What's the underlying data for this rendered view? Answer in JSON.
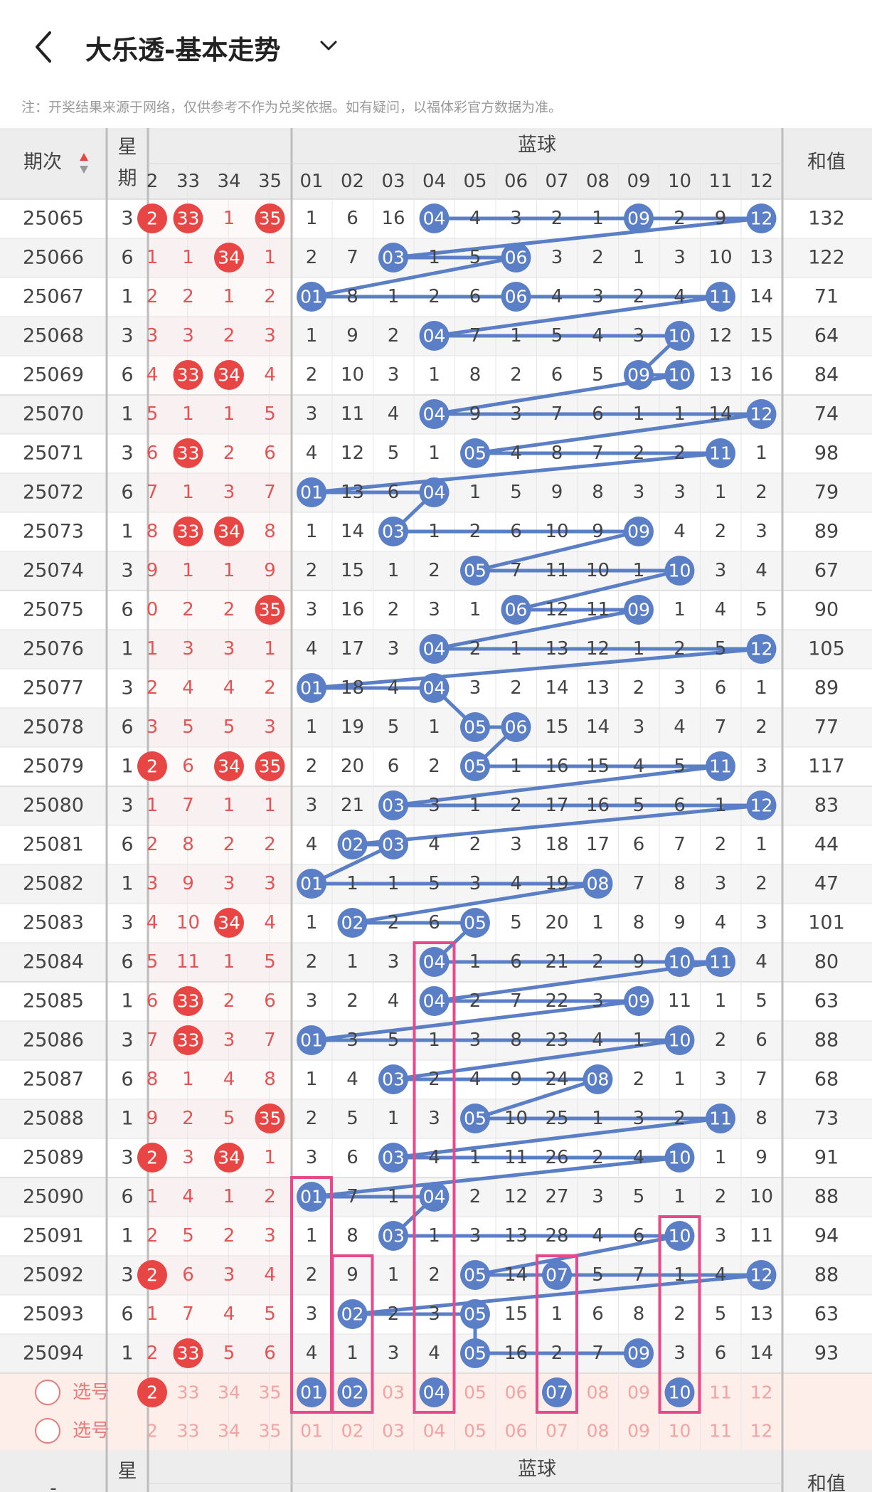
{
  "header": {
    "title": "大乐透-基本走势",
    "back_icon": "chevron-left-icon",
    "dropdown_icon": "chevron-down-icon"
  },
  "notice": "注：开奖结果来源于网络，仅供参考不作为兑奖依据。如有疑问，以福体彩官方数据为准。",
  "table": {
    "col_issue": "期次",
    "col_week": "星期",
    "col_blue": "蓝球",
    "col_sum": "和值",
    "red_cols": [
      "2",
      "33",
      "34",
      "35"
    ],
    "blue_cols": [
      "01",
      "02",
      "03",
      "04",
      "05",
      "06",
      "07",
      "08",
      "09",
      "10",
      "11",
      "12"
    ],
    "rows": [
      {
        "issue": "25065",
        "week": "3",
        "red": [
          "2",
          "33",
          "1",
          "35"
        ],
        "blue": [
          "1",
          "6",
          "16",
          "04",
          "4",
          "3",
          "2",
          "1",
          "09",
          "2",
          "9",
          "12"
        ],
        "sum": "132"
      },
      {
        "issue": "25066",
        "week": "6",
        "red": [
          "1",
          "1",
          "34",
          "1"
        ],
        "blue": [
          "2",
          "7",
          "03",
          "1",
          "5",
          "06",
          "3",
          "2",
          "1",
          "3",
          "10",
          "13"
        ],
        "sum": "122"
      },
      {
        "issue": "25067",
        "week": "1",
        "red": [
          "2",
          "2",
          "1",
          "2"
        ],
        "blue": [
          "01",
          "8",
          "1",
          "2",
          "6",
          "06",
          "4",
          "3",
          "2",
          "4",
          "11",
          "14"
        ],
        "sum": "71"
      },
      {
        "issue": "25068",
        "week": "3",
        "red": [
          "3",
          "3",
          "2",
          "3"
        ],
        "blue": [
          "1",
          "9",
          "2",
          "04",
          "7",
          "1",
          "5",
          "4",
          "3",
          "10",
          "12",
          "15"
        ],
        "sum": "64"
      },
      {
        "issue": "25069",
        "week": "6",
        "red": [
          "4",
          "33",
          "34",
          "4"
        ],
        "blue": [
          "2",
          "10",
          "3",
          "1",
          "8",
          "2",
          "6",
          "5",
          "09",
          "10",
          "13",
          "16"
        ],
        "sum": "84"
      },
      {
        "issue": "25070",
        "week": "1",
        "red": [
          "5",
          "1",
          "1",
          "5"
        ],
        "blue": [
          "3",
          "11",
          "4",
          "04",
          "9",
          "3",
          "7",
          "6",
          "1",
          "1",
          "14",
          "12"
        ],
        "sum": "74"
      },
      {
        "issue": "25071",
        "week": "3",
        "red": [
          "6",
          "33",
          "2",
          "6"
        ],
        "blue": [
          "4",
          "12",
          "5",
          "1",
          "05",
          "4",
          "8",
          "7",
          "2",
          "2",
          "11",
          "1"
        ],
        "sum": "98"
      },
      {
        "issue": "25072",
        "week": "6",
        "red": [
          "7",
          "1",
          "3",
          "7"
        ],
        "blue": [
          "01",
          "13",
          "6",
          "04",
          "1",
          "5",
          "9",
          "8",
          "3",
          "3",
          "1",
          "2"
        ],
        "sum": "79"
      },
      {
        "issue": "25073",
        "week": "1",
        "red": [
          "8",
          "33",
          "34",
          "8"
        ],
        "blue": [
          "1",
          "14",
          "03",
          "1",
          "2",
          "6",
          "10",
          "9",
          "09",
          "4",
          "2",
          "3"
        ],
        "sum": "89"
      },
      {
        "issue": "25074",
        "week": "3",
        "red": [
          "9",
          "1",
          "1",
          "9"
        ],
        "blue": [
          "2",
          "15",
          "1",
          "2",
          "05",
          "7",
          "11",
          "10",
          "1",
          "10",
          "3",
          "4"
        ],
        "sum": "67"
      },
      {
        "issue": "25075",
        "week": "6",
        "red": [
          "0",
          "2",
          "2",
          "35"
        ],
        "blue": [
          "3",
          "16",
          "2",
          "3",
          "1",
          "06",
          "12",
          "11",
          "09",
          "1",
          "4",
          "5"
        ],
        "sum": "90"
      },
      {
        "issue": "25076",
        "week": "1",
        "red": [
          "1",
          "3",
          "3",
          "1"
        ],
        "blue": [
          "4",
          "17",
          "3",
          "04",
          "2",
          "1",
          "13",
          "12",
          "1",
          "2",
          "5",
          "12"
        ],
        "sum": "105"
      },
      {
        "issue": "25077",
        "week": "3",
        "red": [
          "2",
          "4",
          "4",
          "2"
        ],
        "blue": [
          "01",
          "18",
          "4",
          "04",
          "3",
          "2",
          "14",
          "13",
          "2",
          "3",
          "6",
          "1"
        ],
        "sum": "89"
      },
      {
        "issue": "25078",
        "week": "6",
        "red": [
          "3",
          "5",
          "5",
          "3"
        ],
        "blue": [
          "1",
          "19",
          "5",
          "1",
          "05",
          "06",
          "15",
          "14",
          "3",
          "4",
          "7",
          "2"
        ],
        "sum": "77"
      },
      {
        "issue": "25079",
        "week": "1",
        "red": [
          "2",
          "6",
          "34",
          "35"
        ],
        "blue": [
          "2",
          "20",
          "6",
          "2",
          "05",
          "1",
          "16",
          "15",
          "4",
          "5",
          "11",
          "3"
        ],
        "sum": "117"
      },
      {
        "issue": "25080",
        "week": "3",
        "red": [
          "1",
          "7",
          "1",
          "1"
        ],
        "blue": [
          "3",
          "21",
          "03",
          "3",
          "1",
          "2",
          "17",
          "16",
          "5",
          "6",
          "1",
          "12"
        ],
        "sum": "83"
      },
      {
        "issue": "25081",
        "week": "6",
        "red": [
          "2",
          "8",
          "2",
          "2"
        ],
        "blue": [
          "4",
          "02",
          "03",
          "4",
          "2",
          "3",
          "18",
          "17",
          "6",
          "7",
          "2",
          "1"
        ],
        "sum": "44"
      },
      {
        "issue": "25082",
        "week": "1",
        "red": [
          "3",
          "9",
          "3",
          "3"
        ],
        "blue": [
          "01",
          "1",
          "1",
          "5",
          "3",
          "4",
          "19",
          "08",
          "7",
          "8",
          "3",
          "2"
        ],
        "sum": "47"
      },
      {
        "issue": "25083",
        "week": "3",
        "red": [
          "4",
          "10",
          "34",
          "4"
        ],
        "blue": [
          "1",
          "02",
          "2",
          "6",
          "05",
          "5",
          "20",
          "1",
          "8",
          "9",
          "4",
          "3"
        ],
        "sum": "101"
      },
      {
        "issue": "25084",
        "week": "6",
        "red": [
          "5",
          "11",
          "1",
          "5"
        ],
        "blue": [
          "2",
          "1",
          "3",
          "04",
          "1",
          "6",
          "21",
          "2",
          "9",
          "10",
          "11",
          "4"
        ],
        "sum": "80"
      },
      {
        "issue": "25085",
        "week": "1",
        "red": [
          "6",
          "33",
          "2",
          "6"
        ],
        "blue": [
          "3",
          "2",
          "4",
          "04",
          "2",
          "7",
          "22",
          "3",
          "09",
          "11",
          "1",
          "5"
        ],
        "sum": "63"
      },
      {
        "issue": "25086",
        "week": "3",
        "red": [
          "7",
          "33",
          "3",
          "7"
        ],
        "blue": [
          "01",
          "3",
          "5",
          "1",
          "3",
          "8",
          "23",
          "4",
          "1",
          "10",
          "2",
          "6"
        ],
        "sum": "88"
      },
      {
        "issue": "25087",
        "week": "6",
        "red": [
          "8",
          "1",
          "4",
          "8"
        ],
        "blue": [
          "1",
          "4",
          "03",
          "2",
          "4",
          "9",
          "24",
          "08",
          "2",
          "1",
          "3",
          "7"
        ],
        "sum": "68"
      },
      {
        "issue": "25088",
        "week": "1",
        "red": [
          "9",
          "2",
          "5",
          "35"
        ],
        "blue": [
          "2",
          "5",
          "1",
          "3",
          "05",
          "10",
          "25",
          "1",
          "3",
          "2",
          "11",
          "8"
        ],
        "sum": "73"
      },
      {
        "issue": "25089",
        "week": "3",
        "red": [
          "2",
          "3",
          "34",
          "1"
        ],
        "blue": [
          "3",
          "6",
          "03",
          "4",
          "1",
          "11",
          "26",
          "2",
          "4",
          "10",
          "1",
          "9"
        ],
        "sum": "91"
      },
      {
        "issue": "25090",
        "week": "6",
        "red": [
          "1",
          "4",
          "1",
          "2"
        ],
        "blue": [
          "01",
          "7",
          "1",
          "04",
          "2",
          "12",
          "27",
          "3",
          "5",
          "1",
          "2",
          "10"
        ],
        "sum": "88"
      },
      {
        "issue": "25091",
        "week": "1",
        "red": [
          "2",
          "5",
          "2",
          "3"
        ],
        "blue": [
          "1",
          "8",
          "03",
          "1",
          "3",
          "13",
          "28",
          "4",
          "6",
          "10",
          "3",
          "11"
        ],
        "sum": "94"
      },
      {
        "issue": "25092",
        "week": "3",
        "red": [
          "2",
          "6",
          "3",
          "4"
        ],
        "blue": [
          "2",
          "9",
          "1",
          "2",
          "05",
          "14",
          "07",
          "5",
          "7",
          "1",
          "4",
          "12"
        ],
        "sum": "88"
      },
      {
        "issue": "25093",
        "week": "6",
        "red": [
          "1",
          "7",
          "4",
          "5"
        ],
        "blue": [
          "3",
          "02",
          "2",
          "3",
          "05",
          "15",
          "1",
          "6",
          "8",
          "2",
          "5",
          "13"
        ],
        "sum": "63"
      },
      {
        "issue": "25094",
        "week": "1",
        "red": [
          "2",
          "33",
          "5",
          "6"
        ],
        "blue": [
          "4",
          "1",
          "3",
          "4",
          "05",
          "16",
          "2",
          "7",
          "09",
          "3",
          "6",
          "14"
        ],
        "sum": "93"
      }
    ],
    "select_label": "选号",
    "select_rows": [
      {
        "red": [
          "2",
          "33",
          "34",
          "35"
        ],
        "blue": [
          "01",
          "02",
          "03",
          "04",
          "05",
          "06",
          "07",
          "08",
          "09",
          "10",
          "11",
          "12"
        ]
      },
      {
        "red": [
          "2",
          "33",
          "34",
          "35"
        ],
        "blue": [
          "01",
          "02",
          "03",
          "04",
          "05",
          "06",
          "07",
          "08",
          "09",
          "10",
          "11",
          "12"
        ]
      }
    ]
  },
  "colors": {
    "red_ball": "#e84545",
    "blue_ball": "#5b7fc6",
    "highlight": "#e64a8a",
    "select_bg": "#fdeee9"
  }
}
